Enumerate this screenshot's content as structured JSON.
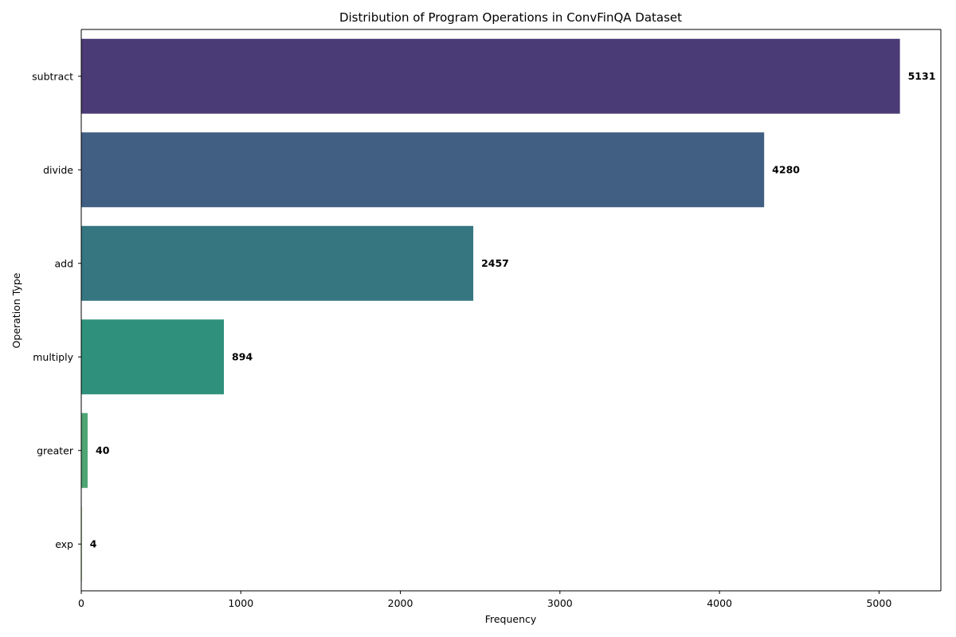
{
  "chart_data": {
    "type": "bar",
    "orientation": "horizontal",
    "title": "Distribution of Program Operations in ConvFinQA Dataset",
    "xlabel": "Frequency",
    "ylabel": "Operation Type",
    "categories": [
      "subtract",
      "divide",
      "add",
      "multiply",
      "greater",
      "exp"
    ],
    "values": [
      5131,
      4280,
      2457,
      894,
      40,
      4
    ],
    "data_labels": [
      "5131",
      "4280",
      "2457",
      "894",
      "40",
      "4"
    ],
    "colors": [
      "#4a3b76",
      "#405f82",
      "#357680",
      "#2f917c",
      "#4fa574",
      "#8fcb5e"
    ],
    "xlim": [
      0,
      5387.55
    ],
    "xticks": [
      0,
      1000,
      2000,
      3000,
      4000,
      5000
    ],
    "xtick_labels": [
      "0",
      "1000",
      "2000",
      "3000",
      "4000",
      "5000"
    ],
    "grid": false,
    "legend": "none"
  }
}
